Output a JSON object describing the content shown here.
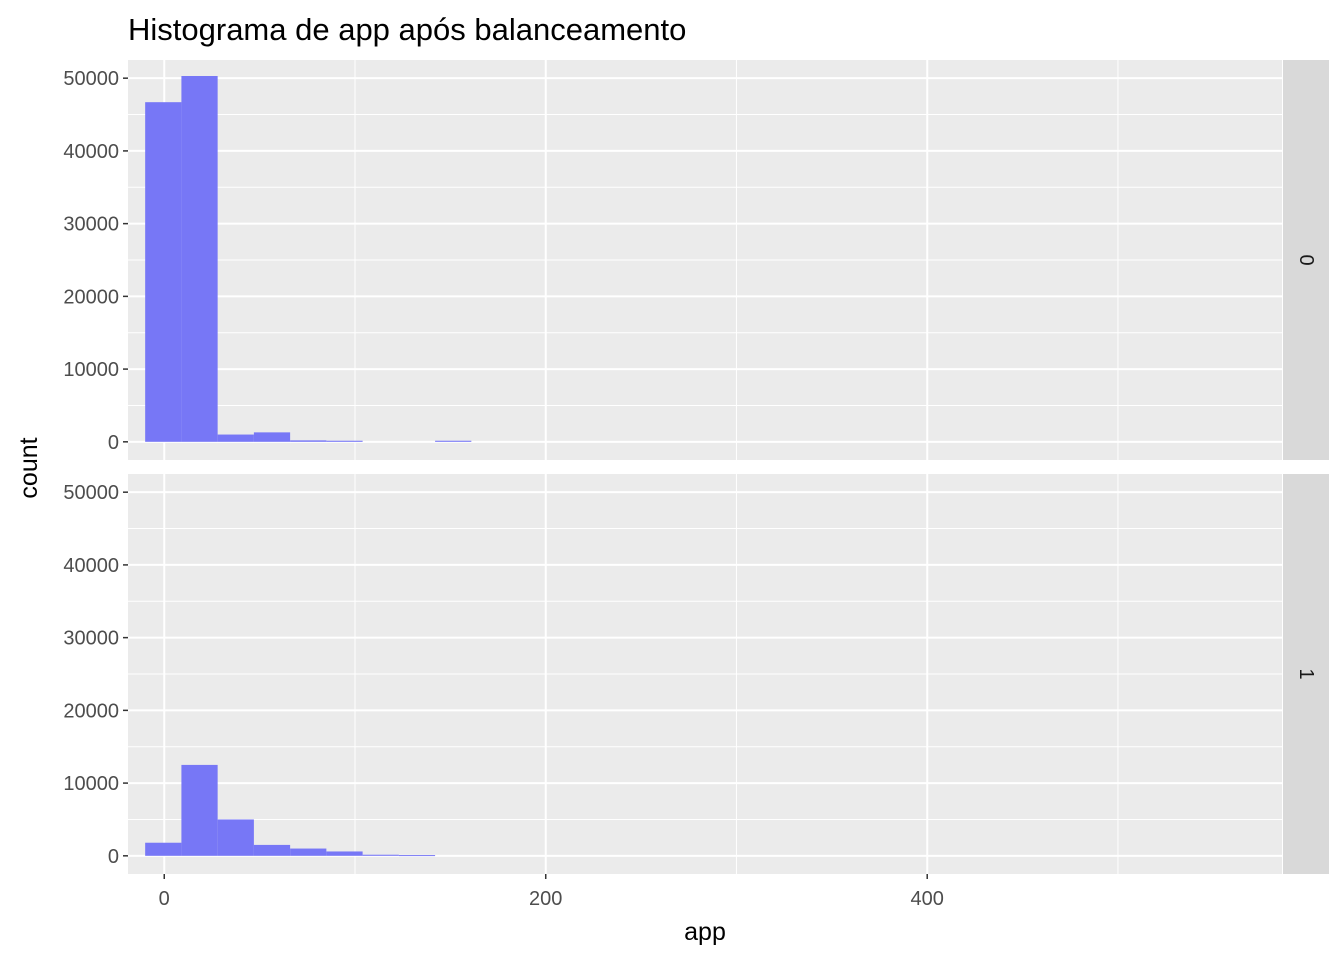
{
  "chart_data": {
    "type": "bar",
    "title": "Histograma de app após balanceamento",
    "xlabel": "app",
    "ylabel": "count",
    "xlim": [
      -19,
      586
    ],
    "ylim": [
      -2500,
      52500
    ],
    "x_ticks": [
      0,
      200,
      400
    ],
    "x_tick_labels": [
      "0",
      "200",
      "400"
    ],
    "y_ticks": [
      0,
      10000,
      20000,
      30000,
      40000,
      50000
    ],
    "y_tick_labels": [
      "0",
      "10000",
      "20000",
      "30000",
      "40000",
      "50000"
    ],
    "bin_width": 19,
    "bar_color": "#7777f6",
    "panel_background": "#ebebeb",
    "strip_background": "#d9d9d9",
    "grid": true,
    "facets": [
      {
        "label": "0",
        "bins": [
          {
            "x0": -10,
            "x1": 9,
            "count": 46700
          },
          {
            "x0": 9,
            "x1": 28,
            "count": 50300
          },
          {
            "x0": 28,
            "x1": 47,
            "count": 1000
          },
          {
            "x0": 47,
            "x1": 66,
            "count": 1300
          },
          {
            "x0": 66,
            "x1": 85,
            "count": 200
          },
          {
            "x0": 85,
            "x1": 104,
            "count": 150
          },
          {
            "x0": 142,
            "x1": 161,
            "count": 150
          }
        ]
      },
      {
        "label": "1",
        "bins": [
          {
            "x0": -10,
            "x1": 9,
            "count": 1800
          },
          {
            "x0": 9,
            "x1": 28,
            "count": 12500
          },
          {
            "x0": 28,
            "x1": 47,
            "count": 5000
          },
          {
            "x0": 47,
            "x1": 66,
            "count": 1500
          },
          {
            "x0": 66,
            "x1": 85,
            "count": 1000
          },
          {
            "x0": 85,
            "x1": 104,
            "count": 600
          },
          {
            "x0": 104,
            "x1": 123,
            "count": 150
          },
          {
            "x0": 123,
            "x1": 142,
            "count": 100
          }
        ]
      }
    ]
  }
}
